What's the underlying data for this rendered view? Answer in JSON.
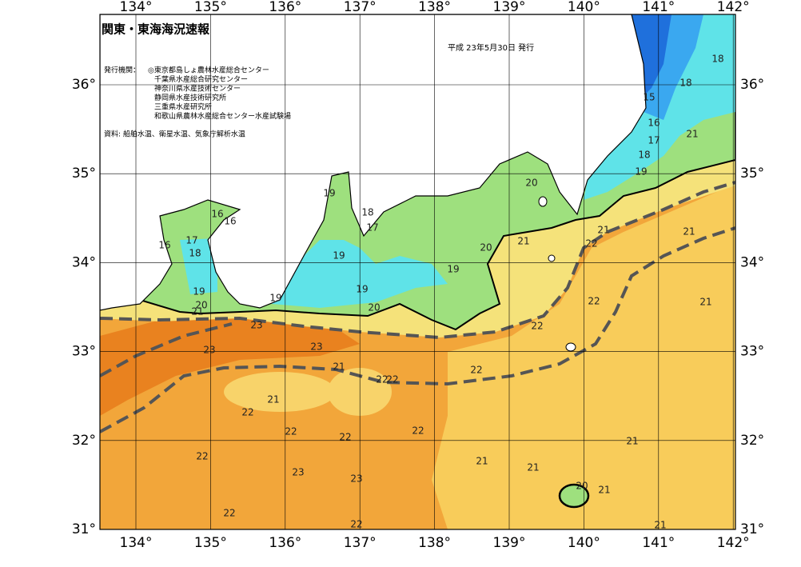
{
  "header": {
    "title": "関東・東海海況速報",
    "date": "平成 23年5月30日 発行"
  },
  "publisher": {
    "label": "発行機関：",
    "agencies": [
      "◎東京都島しょ農林水産総合センター",
      "千葉県水産総合研究センター",
      "神奈川県水産技術センター",
      "静岡県水産技術研究所",
      "三重県水産研究所",
      "和歌山県農林水産総合センター水産試験場"
    ]
  },
  "source": "資料: 船舶水温、衛星水温、気象庁解析水温",
  "map": {
    "longitude_labels": [
      "134°",
      "135°",
      "136°",
      "137°",
      "138°",
      "139°",
      "140°",
      "141°",
      "142°"
    ],
    "latitude_labels": [
      "36°",
      "35°",
      "34°",
      "33°",
      "32°",
      "31°"
    ],
    "contour_labels": [
      18,
      18,
      15,
      16,
      17,
      21,
      18,
      19,
      20,
      19,
      18,
      17,
      16,
      16,
      17,
      16,
      18,
      19,
      20,
      21,
      19,
      19,
      20,
      21,
      22,
      21,
      21,
      22,
      21,
      19,
      20,
      19,
      23,
      23,
      23,
      22,
      21,
      22,
      22,
      22,
      21,
      22,
      22,
      22,
      22,
      21,
      22,
      21,
      21,
      23,
      23,
      20,
      21,
      22,
      22,
      21
    ]
  }
}
